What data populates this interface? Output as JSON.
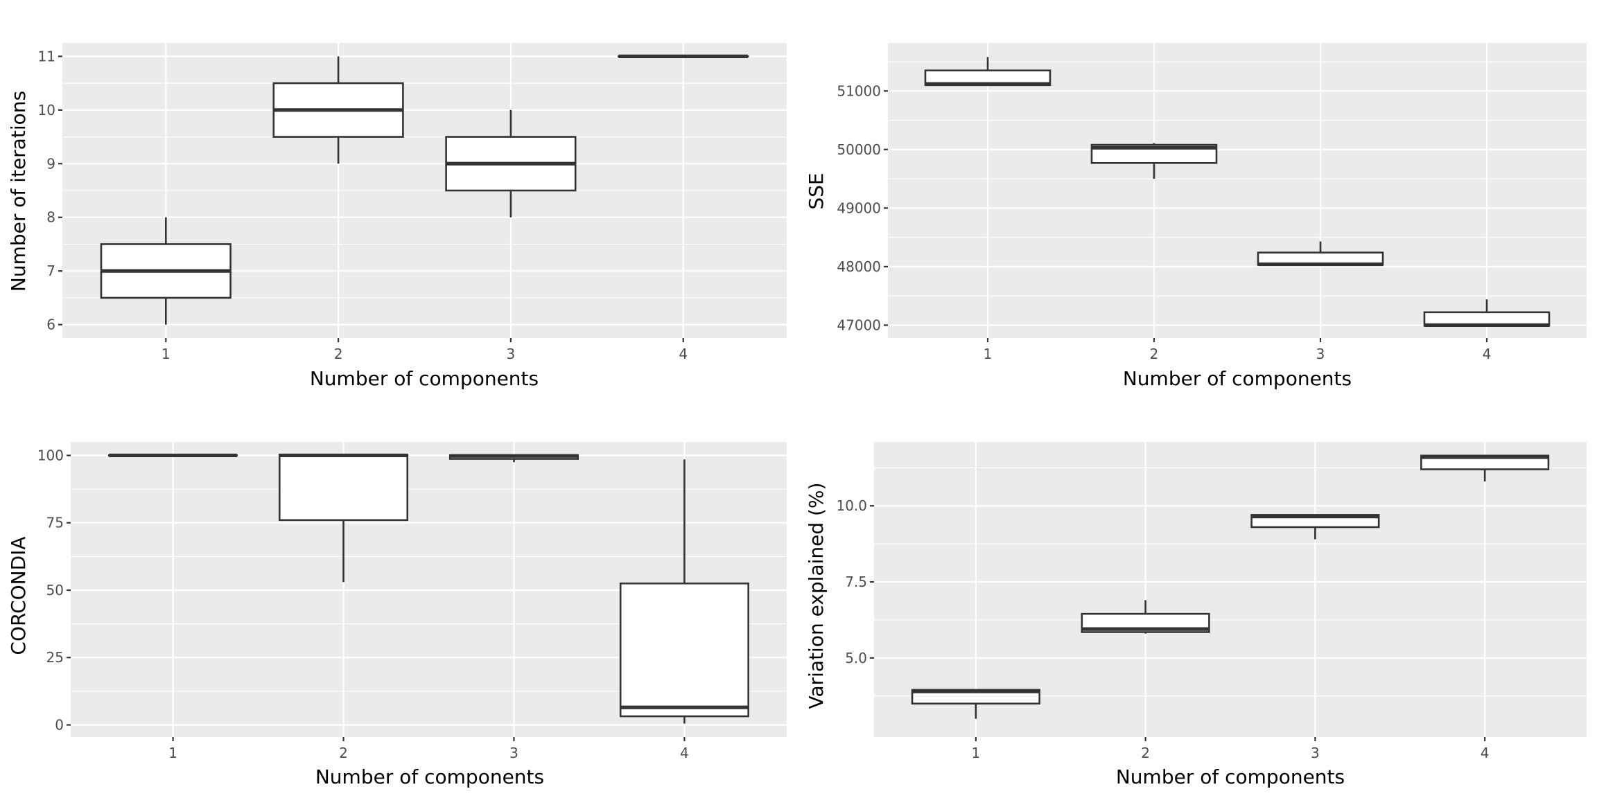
{
  "chart_data": [
    {
      "type": "boxplot",
      "xlabel": "Number of components",
      "ylabel": "Number of iterations",
      "categories": [
        "1",
        "2",
        "3",
        "4"
      ],
      "ylim": [
        5.75,
        11.25
      ],
      "yticks": [
        6,
        7,
        8,
        9,
        10,
        11
      ],
      "ytick_labels": [
        "6",
        "7",
        "8",
        "9",
        "10",
        "11"
      ],
      "grid": true,
      "boxes": [
        {
          "min": 6,
          "q1": 6.5,
          "median": 7,
          "q3": 7.5,
          "max": 8
        },
        {
          "min": 9,
          "q1": 9.5,
          "median": 10,
          "q3": 10.5,
          "max": 11
        },
        {
          "min": 8,
          "q1": 8.5,
          "median": 9,
          "q3": 9.5,
          "max": 10
        },
        {
          "min": 11,
          "q1": 11,
          "median": 11,
          "q3": 11,
          "max": 11
        }
      ]
    },
    {
      "type": "boxplot",
      "xlabel": "Number of components",
      "ylabel": "SSE",
      "categories": [
        "1",
        "2",
        "3",
        "4"
      ],
      "ylim": [
        46780,
        51820
      ],
      "yticks": [
        47000,
        48000,
        49000,
        50000,
        51000
      ],
      "ytick_labels": [
        "47000",
        "48000",
        "49000",
        "50000",
        "51000"
      ],
      "grid": true,
      "boxes": [
        {
          "min": 51100,
          "q1": 51100,
          "median": 51120,
          "q3": 51350,
          "max": 51580
        },
        {
          "min": 49500,
          "q1": 49770,
          "median": 50030,
          "q3": 50080,
          "max": 50110
        },
        {
          "min": 48030,
          "q1": 48030,
          "median": 48040,
          "q3": 48240,
          "max": 48430
        },
        {
          "min": 46990,
          "q1": 46990,
          "median": 47000,
          "q3": 47220,
          "max": 47440
        }
      ]
    },
    {
      "type": "boxplot",
      "xlabel": "Number of components",
      "ylabel": "CORCONDIA",
      "categories": [
        "1",
        "2",
        "3",
        "4"
      ],
      "ylim": [
        -4.5,
        105
      ],
      "yticks": [
        0,
        25,
        50,
        75,
        100
      ],
      "ytick_labels": [
        "0",
        "25",
        "50",
        "75",
        "100"
      ],
      "grid": true,
      "boxes": [
        {
          "min": 100,
          "q1": 100,
          "median": 100,
          "q3": 100,
          "max": 100
        },
        {
          "min": 53,
          "q1": 76,
          "median": 100,
          "q3": 100.3,
          "max": 100.6
        },
        {
          "min": 97.5,
          "q1": 98.7,
          "median": 99.8,
          "q3": 100.1,
          "max": 100.3
        },
        {
          "min": 0.5,
          "q1": 3.2,
          "median": 6.5,
          "q3": 52.5,
          "max": 98.5
        }
      ]
    },
    {
      "type": "boxplot",
      "xlabel": "Number of components",
      "ylabel": "Variation explained (%)",
      "categories": [
        "1",
        "2",
        "3",
        "4"
      ],
      "ylim": [
        2.4,
        12.1
      ],
      "yticks": [
        5.0,
        7.5,
        10.0
      ],
      "ytick_labels": [
        "5.0",
        "7.5",
        "10.0"
      ],
      "grid": true,
      "boxes": [
        {
          "min": 3.0,
          "q1": 3.5,
          "median": 3.9,
          "q3": 3.95,
          "max": 3.95
        },
        {
          "min": 5.8,
          "q1": 5.85,
          "median": 5.95,
          "q3": 6.45,
          "max": 6.9
        },
        {
          "min": 8.9,
          "q1": 9.3,
          "median": 9.65,
          "q3": 9.7,
          "max": 9.7
        },
        {
          "min": 10.8,
          "q1": 11.2,
          "median": 11.6,
          "q3": 11.65,
          "max": 11.65
        }
      ]
    }
  ]
}
